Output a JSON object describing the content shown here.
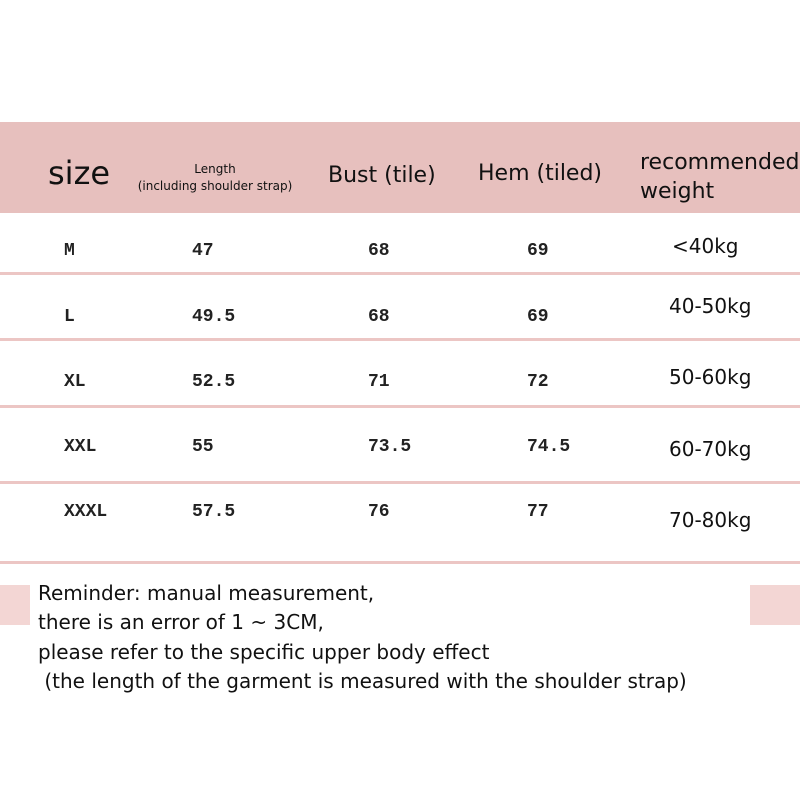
{
  "table": {
    "header": [
      "size",
      "Length",
      "(including shoulder strap)",
      "Bust (tile)",
      "Hem (tiled)",
      "recommended",
      "weight"
    ],
    "rows": [
      [
        "M",
        "47",
        "68",
        "69",
        "<40kg"
      ],
      [
        "L",
        "49.5",
        "68",
        "69",
        "40-50kg"
      ],
      [
        "XL",
        "52.5",
        "71",
        "72",
        "50-60kg"
      ],
      [
        "XXL",
        "55",
        "73.5",
        "74.5",
        "60-70kg"
      ],
      [
        "XXXL",
        "57.5",
        "76",
        "77",
        "70-80kg"
      ]
    ]
  },
  "reminder": [
    "Reminder: manual measurement,",
    "there is an error of 1 ~ 3CM,",
    "please refer to the specific upper body effect",
    " (the length of the garment is measured with the shoulder strap)"
  ]
}
